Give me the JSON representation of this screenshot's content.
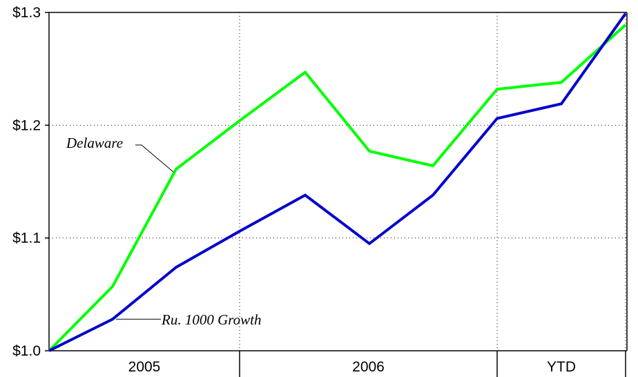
{
  "chart_data": {
    "type": "line",
    "title": "",
    "xlabel": "",
    "ylabel": "",
    "x": [
      0,
      1,
      2,
      3,
      4,
      5,
      6,
      7,
      8,
      9
    ],
    "ylim": [
      1.0,
      1.3
    ],
    "yticks": [
      {
        "value": 1.0,
        "label": "$1.0"
      },
      {
        "value": 1.1,
        "label": "$1.1"
      },
      {
        "value": 1.2,
        "label": "$1.2"
      },
      {
        "value": 1.3,
        "label": "$1.3"
      }
    ],
    "period_labels": [
      {
        "label": "2005",
        "start": 0,
        "end": 3
      },
      {
        "label": "2006",
        "start": 3,
        "end": 7
      },
      {
        "label": "YTD",
        "start": 7,
        "end": 9
      }
    ],
    "series": [
      {
        "name": "Delaware",
        "color": "#00ff00",
        "values": [
          1.0,
          1.057,
          1.161,
          1.204,
          1.247,
          1.177,
          1.164,
          1.232,
          1.238,
          1.289
        ]
      },
      {
        "name": "Ru. 1000 Growth",
        "color": "#0000cc",
        "values": [
          1.0,
          1.028,
          1.074,
          1.106,
          1.138,
          1.095,
          1.138,
          1.206,
          1.219,
          1.299
        ]
      }
    ],
    "grid": true,
    "grid_style": "dotted"
  }
}
